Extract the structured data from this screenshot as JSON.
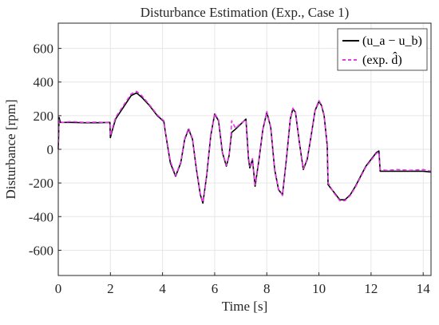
{
  "chart_data": {
    "type": "line",
    "title": "Disturbance Estimation (Exp., Case 1)",
    "xlabel": "Time [s]",
    "ylabel": "Disturbance [rpm]",
    "xlim": [
      0,
      14.3
    ],
    "ylim": [
      -750,
      750
    ],
    "xticks": [
      0,
      2,
      4,
      6,
      8,
      10,
      12,
      14
    ],
    "yticks": [
      600,
      400,
      200,
      0,
      -200,
      -400,
      -600
    ],
    "xtick_labels": [
      "0",
      "2",
      "4",
      "6",
      "8",
      "10",
      "12",
      "14"
    ],
    "ytick_labels": [
      "600",
      "400",
      "200",
      "0",
      "-200",
      "-400",
      "-600"
    ],
    "grid": true,
    "legend_position": "top-right",
    "series": [
      {
        "name": "(u_a − u_b)",
        "color": "#000000",
        "style": "solid",
        "x": [
          0,
          0.03,
          0.08,
          0.15,
          0.5,
          1.0,
          1.5,
          1.98,
          2.0,
          2.05,
          2.2,
          2.5,
          2.8,
          3.0,
          3.2,
          3.5,
          3.8,
          4.05,
          4.1,
          4.3,
          4.5,
          4.7,
          4.85,
          5.0,
          5.15,
          5.3,
          5.45,
          5.55,
          5.7,
          5.85,
          6.0,
          6.15,
          6.3,
          6.45,
          6.55,
          6.62,
          6.65,
          6.8,
          7.0,
          7.2,
          7.3,
          7.35,
          7.45,
          7.55,
          7.7,
          7.85,
          8.0,
          8.15,
          8.3,
          8.45,
          8.6,
          8.75,
          8.9,
          9.0,
          9.1,
          9.25,
          9.4,
          9.55,
          9.7,
          9.85,
          10.0,
          10.1,
          10.2,
          10.32,
          10.35,
          10.45,
          10.6,
          10.8,
          11.0,
          11.2,
          11.4,
          11.6,
          11.8,
          12.0,
          12.2,
          12.3,
          12.32,
          12.35,
          12.6,
          13.0,
          13.5,
          14.0,
          14.3
        ],
        "y": [
          0,
          190,
          160,
          160,
          160,
          158,
          158,
          160,
          70,
          100,
          180,
          250,
          320,
          335,
          310,
          260,
          200,
          165,
          110,
          -80,
          -160,
          -80,
          60,
          120,
          60,
          -120,
          -270,
          -320,
          -150,
          80,
          210,
          170,
          -20,
          -100,
          -40,
          60,
          100,
          120,
          150,
          180,
          -60,
          -110,
          -60,
          -220,
          -60,
          120,
          220,
          130,
          -120,
          -240,
          -270,
          -60,
          180,
          240,
          220,
          40,
          -120,
          -60,
          80,
          230,
          285,
          260,
          200,
          20,
          -210,
          -230,
          -260,
          -300,
          -300,
          -270,
          -220,
          -160,
          -100,
          -60,
          -20,
          -10,
          -50,
          -130,
          -130,
          -130,
          -130,
          -130,
          -135
        ]
      },
      {
        "name": "(exp. d̂)",
        "color": "#e639e6",
        "style": "dashed",
        "x": [
          0,
          0.03,
          0.08,
          0.15,
          0.5,
          1.0,
          1.5,
          1.98,
          2.0,
          2.05,
          2.2,
          2.5,
          2.8,
          3.0,
          3.2,
          3.5,
          3.8,
          4.05,
          4.1,
          4.3,
          4.5,
          4.7,
          4.85,
          5.0,
          5.15,
          5.3,
          5.45,
          5.55,
          5.7,
          5.85,
          6.0,
          6.15,
          6.3,
          6.45,
          6.55,
          6.62,
          6.65,
          6.8,
          7.0,
          7.2,
          7.3,
          7.35,
          7.45,
          7.55,
          7.7,
          7.85,
          8.0,
          8.15,
          8.3,
          8.45,
          8.6,
          8.75,
          8.9,
          9.0,
          9.1,
          9.25,
          9.4,
          9.55,
          9.7,
          9.85,
          10.0,
          10.1,
          10.2,
          10.32,
          10.35,
          10.45,
          10.6,
          10.8,
          11.0,
          11.2,
          11.4,
          11.6,
          11.8,
          12.0,
          12.2,
          12.3,
          12.32,
          12.35,
          12.6,
          13.0,
          13.5,
          14.0,
          14.3
        ],
        "y": [
          0,
          175,
          165,
          160,
          165,
          160,
          162,
          158,
          80,
          110,
          190,
          260,
          330,
          345,
          320,
          265,
          205,
          170,
          115,
          -70,
          -155,
          -75,
          65,
          125,
          65,
          -115,
          -265,
          -315,
          -145,
          85,
          215,
          175,
          -15,
          -95,
          -35,
          65,
          170,
          125,
          155,
          175,
          -50,
          -100,
          -55,
          -210,
          -55,
          125,
          225,
          135,
          -115,
          -235,
          -275,
          -55,
          185,
          245,
          225,
          45,
          -115,
          -55,
          85,
          235,
          290,
          265,
          205,
          25,
          -200,
          -225,
          -265,
          -305,
          -305,
          -275,
          -225,
          -165,
          -105,
          -65,
          -25,
          -15,
          -55,
          -120,
          -125,
          -120,
          -125,
          -120,
          -130
        ]
      }
    ]
  }
}
